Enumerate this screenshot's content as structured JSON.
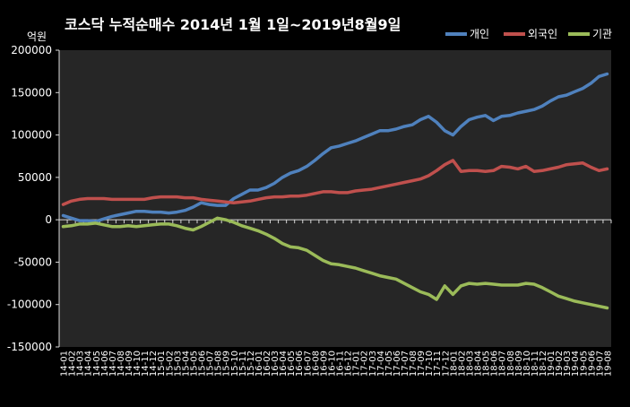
{
  "chart_data": {
    "type": "line",
    "title": "코스닥  누적순매수 2014년 1월 1일~2019년8월9일",
    "ylabel": "억원",
    "xlabel": "",
    "ylim": [
      -150000,
      200000
    ],
    "yticks": [
      200000,
      150000,
      100000,
      50000,
      0,
      -50000,
      -100000,
      -150000
    ],
    "grid": false,
    "legend_position": "top-right",
    "x_tick_labels": [
      "14-01",
      "14-02",
      "14-03",
      "14-04",
      "14-05",
      "14-06",
      "14-07",
      "14-08",
      "14-09",
      "14-10",
      "14-11",
      "14-12",
      "15-01",
      "15-02",
      "15-03",
      "15-04",
      "15-05",
      "15-06",
      "15-07",
      "15-08",
      "15-09",
      "15-10",
      "15-11",
      "15-12",
      "16-01",
      "16-02",
      "16-03",
      "16-04",
      "16-05",
      "16-06",
      "16-07",
      "16-08",
      "16-09",
      "16-10",
      "16-11",
      "16-12",
      "17-01",
      "17-02",
      "17-03",
      "17-04",
      "17-05",
      "17-06",
      "17-07",
      "17-08",
      "17-09",
      "17-10",
      "17-11",
      "17-12",
      "18-01",
      "18-02",
      "18-03",
      "18-04",
      "18-05",
      "18-06",
      "18-07",
      "18-08",
      "18-09",
      "18-10",
      "18-11",
      "18-12",
      "19-01",
      "19-02",
      "19-03",
      "19-04",
      "19-05",
      "19-06",
      "19-07",
      "19-08"
    ],
    "series": [
      {
        "name": "개인",
        "color": "#4f81bd",
        "values": [
          5000,
          2000,
          -1000,
          -1000,
          -2000,
          1000,
          4000,
          6000,
          8000,
          10000,
          10000,
          9000,
          9000,
          8000,
          9000,
          11000,
          15000,
          20000,
          18000,
          17000,
          17000,
          25000,
          30000,
          35000,
          35000,
          38000,
          43000,
          50000,
          55000,
          58000,
          63000,
          70000,
          78000,
          85000,
          87000,
          90000,
          93000,
          97000,
          101000,
          105000,
          105000,
          107000,
          110000,
          112000,
          118000,
          122000,
          115000,
          105000,
          100000,
          110000,
          118000,
          121000,
          123000,
          117000,
          122000,
          123000,
          126000,
          128000,
          130000,
          134000,
          140000,
          145000,
          147000,
          151000,
          155000,
          161000,
          169000,
          172000
        ]
      },
      {
        "name": "외국인",
        "color": "#c0504d",
        "values": [
          18000,
          22000,
          24000,
          25000,
          25000,
          25000,
          24000,
          24000,
          24000,
          24000,
          24000,
          26000,
          27000,
          27000,
          27000,
          26000,
          26000,
          24000,
          23000,
          22000,
          21000,
          20000,
          21000,
          22000,
          24000,
          26000,
          27000,
          27000,
          28000,
          28000,
          29000,
          31000,
          33000,
          33000,
          32000,
          32000,
          34000,
          35000,
          36000,
          38000,
          40000,
          42000,
          44000,
          46000,
          48000,
          52000,
          58000,
          65000,
          70000,
          57000,
          58000,
          58000,
          57000,
          58000,
          63000,
          62000,
          60000,
          63000,
          57000,
          58000,
          60000,
          62000,
          65000,
          66000,
          67000,
          62000,
          58000,
          60000
        ]
      },
      {
        "name": "기관",
        "color": "#9bbb59",
        "values": [
          -8000,
          -7000,
          -5000,
          -5000,
          -4000,
          -6000,
          -8000,
          -8000,
          -7000,
          -8000,
          -7000,
          -6000,
          -5000,
          -5000,
          -7000,
          -10000,
          -12000,
          -8000,
          -3000,
          2000,
          0,
          -3000,
          -7000,
          -10000,
          -13000,
          -17000,
          -22000,
          -28000,
          -32000,
          -33000,
          -36000,
          -42000,
          -48000,
          -52000,
          -53000,
          -55000,
          -57000,
          -60000,
          -63000,
          -66000,
          -68000,
          -70000,
          -75000,
          -80000,
          -85000,
          -88000,
          -94000,
          -78000,
          -88000,
          -78000,
          -75000,
          -76000,
          -75000,
          -76000,
          -77000,
          -77000,
          -77000,
          -75000,
          -76000,
          -80000,
          -85000,
          -90000,
          -93000,
          -96000,
          -98000,
          -100000,
          -102000,
          -104000
        ]
      }
    ]
  }
}
